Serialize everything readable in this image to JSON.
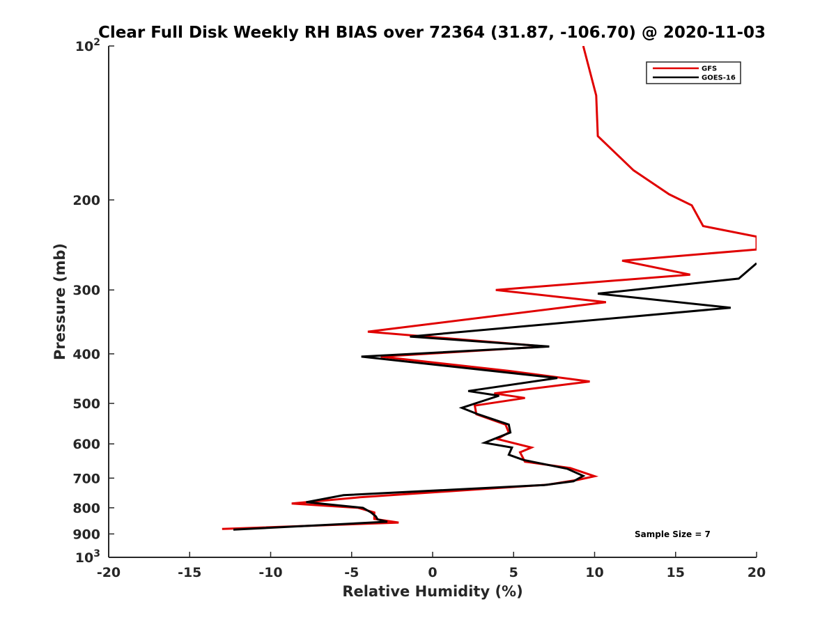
{
  "chart_data": {
    "type": "line",
    "title": "Clear Full Disk Weekly RH BIAS over 72364 (31.87, -106.70) @ 2020-11-03",
    "xlabel": "Relative Humidity (%)",
    "ylabel": "Pressure (mb)",
    "xlim": [
      -20,
      20
    ],
    "ylim": [
      100,
      1000
    ],
    "y_scale": "log",
    "y_reversed": true,
    "grid": false,
    "legend_position": "top-right",
    "x_ticks": [
      {
        "value": -20,
        "label": "-20"
      },
      {
        "value": -15,
        "label": "-15"
      },
      {
        "value": -10,
        "label": "-10"
      },
      {
        "value": -5,
        "label": "-5"
      },
      {
        "value": 0,
        "label": "0"
      },
      {
        "value": 5,
        "label": "5"
      },
      {
        "value": 10,
        "label": "10"
      },
      {
        "value": 15,
        "label": "15"
      },
      {
        "value": 20,
        "label": "20"
      }
    ],
    "y_ticks": [
      {
        "value": 200,
        "label": "200"
      },
      {
        "value": 300,
        "label": "300"
      },
      {
        "value": 400,
        "label": "400"
      },
      {
        "value": 500,
        "label": "500"
      },
      {
        "value": 600,
        "label": "600"
      },
      {
        "value": 700,
        "label": "700"
      },
      {
        "value": 800,
        "label": "800"
      },
      {
        "value": 900,
        "label": "900"
      }
    ],
    "y_tick_powers": [
      {
        "value": 100,
        "base": "10",
        "exp": "2"
      },
      {
        "value": 1000,
        "base": "10",
        "exp": "3"
      }
    ],
    "annotation": "Sample Size = 7",
    "series": [
      {
        "name": "GFS",
        "color": "#e00000",
        "points": [
          [
            9.3,
            100
          ],
          [
            10.1,
            125
          ],
          [
            10.2,
            150
          ],
          [
            12.4,
            175
          ],
          [
            14.6,
            195
          ],
          [
            16.0,
            205
          ],
          [
            16.7,
            225
          ],
          [
            20.0,
            236
          ],
          [
            20.0,
            250
          ],
          [
            11.7,
            263
          ],
          [
            15.9,
            280
          ],
          [
            3.9,
            300
          ],
          [
            10.7,
            317
          ],
          [
            -4.0,
            362
          ],
          [
            7.0,
            387
          ],
          [
            -3.2,
            405
          ],
          [
            4.7,
            432
          ],
          [
            9.7,
            453
          ],
          [
            3.8,
            478
          ],
          [
            5.7,
            488
          ],
          [
            2.6,
            505
          ],
          [
            2.7,
            525
          ],
          [
            4.5,
            550
          ],
          [
            4.7,
            570
          ],
          [
            4.0,
            587
          ],
          [
            6.1,
            610
          ],
          [
            5.4,
            623
          ],
          [
            5.7,
            650
          ],
          [
            8.5,
            669
          ],
          [
            10.0,
            694
          ],
          [
            9.0,
            705
          ],
          [
            7.1,
            721
          ],
          [
            -4.5,
            763
          ],
          [
            -8.7,
            785
          ],
          [
            -4.6,
            800
          ],
          [
            -3.6,
            817
          ],
          [
            -3.6,
            841
          ],
          [
            -2.1,
            855
          ],
          [
            -13.0,
            880
          ]
        ]
      },
      {
        "name": "GOES-16",
        "color": "#000000",
        "points": [
          [
            20.0,
            266
          ],
          [
            18.9,
            285
          ],
          [
            10.2,
            305
          ],
          [
            18.4,
            325
          ],
          [
            -1.4,
            370
          ],
          [
            7.2,
            387
          ],
          [
            -4.4,
            405
          ],
          [
            7.7,
            446
          ],
          [
            2.2,
            473
          ],
          [
            4.1,
            483
          ],
          [
            1.8,
            510
          ],
          [
            2.8,
            525
          ],
          [
            4.7,
            550
          ],
          [
            4.8,
            570
          ],
          [
            3.2,
            597
          ],
          [
            4.9,
            610
          ],
          [
            4.7,
            630
          ],
          [
            5.6,
            645
          ],
          [
            8.3,
            671
          ],
          [
            9.3,
            693
          ],
          [
            8.7,
            710
          ],
          [
            6.9,
            722
          ],
          [
            -5.5,
            756
          ],
          [
            -7.8,
            780
          ],
          [
            -4.3,
            800
          ],
          [
            -3.8,
            817
          ],
          [
            -3.5,
            832
          ],
          [
            -3.4,
            843
          ],
          [
            -2.8,
            852
          ],
          [
            -12.3,
            883
          ]
        ]
      }
    ]
  }
}
